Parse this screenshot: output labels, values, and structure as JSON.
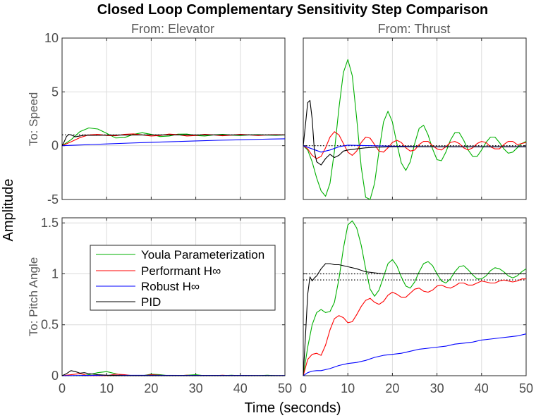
{
  "chart_data": {
    "type": "line",
    "title": "Closed Loop Complementary Sensitivity Step Comparison",
    "xlabel": "Time (seconds)",
    "ylabel": "Amplitude",
    "grid": true,
    "legend_placement": "inside lower-left subplot, upper area",
    "columns": [
      "From: Elevator",
      "From: Thrust"
    ],
    "rows": [
      "To: Speed",
      "To: Pitch Angle"
    ],
    "xlim": [
      0,
      50
    ],
    "xticks": [
      "0",
      "10",
      "20",
      "30",
      "40",
      "50"
    ],
    "row_ylims": [
      [
        -5,
        10
      ],
      [
        0,
        1.55
      ]
    ],
    "row_yticks": [
      [
        "-5",
        "0",
        "5",
        "10"
      ],
      [
        "0",
        "0.5",
        "1",
        "1.5"
      ]
    ],
    "series": [
      {
        "name": "Youla Parameterization",
        "color": "#00b000"
      },
      {
        "name": "Performant H∞",
        "color": "#ff0000"
      },
      {
        "name": "Robust H∞",
        "color": "#0000ff"
      },
      {
        "name": "PID",
        "color": "#000000"
      }
    ],
    "subplots": [
      {
        "row": 0,
        "col": 0,
        "reference_lines": [
          1.0
        ],
        "series": {
          "Youla Parameterization": {
            "x": [
              0,
              2,
              4,
              6,
              8,
              10,
              12,
              14,
              16,
              18,
              20,
              22,
              24,
              26,
              28,
              30,
              32,
              34,
              36,
              38,
              40,
              42,
              44,
              46,
              48,
              50
            ],
            "y": [
              0,
              0.55,
              1.3,
              1.65,
              1.55,
              1.15,
              0.72,
              0.75,
              1.05,
              1.2,
              1.05,
              0.85,
              0.9,
              1.07,
              1.08,
              0.95,
              0.9,
              1.0,
              1.05,
              0.98,
              0.95,
              1.0,
              1.02,
              0.98,
              0.97,
              1.0
            ]
          },
          "Performant H∞": {
            "x": [
              0,
              2,
              4,
              6,
              8,
              10,
              12,
              14,
              16,
              18,
              20,
              22,
              24,
              26,
              28,
              30,
              32,
              34,
              36,
              38,
              40,
              42,
              44,
              46,
              48,
              50
            ],
            "y": [
              0,
              0.35,
              0.75,
              1.0,
              1.05,
              0.95,
              0.92,
              1.05,
              1.1,
              1.0,
              0.9,
              0.95,
              1.08,
              1.02,
              0.9,
              0.95,
              1.05,
              1.0,
              0.92,
              0.98,
              1.05,
              1.0,
              0.95,
              1.0,
              1.02,
              1.0
            ]
          },
          "Robust H∞": {
            "x": [
              0,
              5,
              10,
              15,
              20,
              25,
              30,
              35,
              40,
              45,
              50
            ],
            "y": [
              0,
              0.08,
              0.16,
              0.24,
              0.31,
              0.38,
              0.44,
              0.5,
              0.55,
              0.6,
              0.64
            ]
          },
          "PID": {
            "x": [
              0,
              0.5,
              1,
              1.5,
              2,
              3,
              4,
              5,
              6,
              8,
              10,
              14,
              20,
              30,
              40,
              50
            ],
            "y": [
              0,
              0.4,
              0.85,
              1.05,
              1.0,
              0.82,
              0.9,
              0.98,
              0.97,
              0.96,
              0.98,
              0.99,
              1.0,
              1.0,
              1.0,
              1.0
            ]
          }
        }
      },
      {
        "row": 0,
        "col": 1,
        "reference_lines": [
          0.0
        ],
        "series": {
          "Youla Parameterization": {
            "x": [
              0,
              1,
              2,
              3,
              4,
              5,
              6,
              7,
              8,
              9,
              10,
              11,
              12,
              13,
              14,
              15,
              16,
              17,
              18,
              19,
              20,
              21,
              22,
              23,
              24,
              25,
              26,
              27,
              28,
              29,
              30,
              31,
              32,
              33,
              34,
              35,
              36,
              37,
              38,
              39,
              40,
              41,
              42,
              43,
              44,
              45,
              46,
              47,
              48,
              49,
              50
            ],
            "y": [
              0,
              -0.4,
              -1.5,
              -3.0,
              -4.2,
              -4.7,
              -3.5,
              -0.5,
              3.5,
              6.8,
              8.0,
              6.5,
              2.5,
              -2.0,
              -4.8,
              -5.3,
              -3.5,
              -0.5,
              2.2,
              3.2,
              2.2,
              0.2,
              -1.6,
              -2.3,
              -1.5,
              0.2,
              1.6,
              1.9,
              1.0,
              -0.3,
              -1.3,
              -1.4,
              -0.6,
              0.5,
              1.2,
              1.2,
              0.5,
              -0.4,
              -1.0,
              -1.0,
              -0.4,
              0.3,
              0.8,
              0.8,
              0.3,
              -0.3,
              -0.7,
              -0.6,
              -0.2,
              0.2,
              0.4
            ]
          },
          "Performant H∞": {
            "x": [
              0,
              1,
              2,
              3,
              4,
              5,
              6,
              7,
              8,
              9,
              10,
              11,
              12,
              13,
              14,
              15,
              16,
              17,
              18,
              19,
              20,
              21,
              22,
              23,
              24,
              25,
              26,
              27,
              28,
              29,
              30,
              31,
              32,
              33,
              34,
              35,
              36,
              37,
              38,
              39,
              40,
              41,
              42,
              43,
              44,
              45,
              46,
              47,
              48,
              49,
              50
            ],
            "y": [
              0,
              -0.3,
              -0.9,
              -1.2,
              -1.0,
              -0.2,
              0.8,
              1.3,
              1.0,
              0.2,
              -0.6,
              -0.9,
              -0.5,
              0.3,
              0.8,
              0.7,
              0.1,
              -0.5,
              -0.6,
              -0.2,
              0.3,
              0.5,
              0.3,
              -0.2,
              -0.5,
              -0.4,
              0.1,
              0.4,
              0.4,
              0.0,
              -0.3,
              -0.4,
              -0.1,
              0.3,
              0.4,
              0.2,
              -0.2,
              -0.4,
              -0.2,
              0.2,
              0.4,
              0.3,
              -0.1,
              -0.3,
              -0.3,
              0.1,
              0.4,
              0.4,
              0.1,
              0.2,
              0.3
            ]
          },
          "Robust H∞": {
            "x": [
              0,
              2,
              4,
              6,
              8,
              10,
              15,
              20,
              30,
              40,
              50
            ],
            "y": [
              0,
              -0.3,
              -0.6,
              -0.4,
              -0.1,
              0.05,
              0.0,
              -0.05,
              -0.1,
              -0.1,
              -0.1
            ]
          },
          "PID": {
            "x": [
              0,
              0.5,
              1,
              1.5,
              2,
              2.5,
              3,
              4,
              5,
              6,
              7,
              8,
              9,
              10,
              12,
              14,
              16,
              20,
              30,
              40,
              50
            ],
            "y": [
              0,
              2.0,
              4.0,
              4.2,
              2.5,
              -0.5,
              -1.5,
              -1.8,
              -1.2,
              -0.8,
              -1.1,
              -0.9,
              -0.5,
              -0.4,
              -0.3,
              -0.2,
              -0.15,
              -0.1,
              -0.1,
              -0.1,
              -0.1
            ]
          }
        }
      },
      {
        "row": 1,
        "col": 0,
        "reference_lines": [
          0.0
        ],
        "series": {
          "Youla Parameterization": {
            "x": [
              0,
              2,
              4,
              6,
              8,
              10,
              12,
              14,
              16,
              18,
              20,
              22,
              24,
              26,
              28,
              30,
              32,
              34,
              36,
              38,
              40,
              42,
              44,
              46,
              48,
              50
            ],
            "y": [
              0,
              -0.01,
              0.0,
              0.01,
              0.03,
              0.04,
              0.02,
              -0.01,
              -0.02,
              0.0,
              0.015,
              0.01,
              -0.01,
              -0.01,
              0.005,
              0.01,
              0.0,
              -0.01,
              0.0,
              0.005,
              0.0,
              -0.005,
              0.0,
              0.005,
              0.0,
              0.0
            ]
          },
          "Performant H∞": {
            "x": [
              0,
              2,
              4,
              6,
              8,
              10,
              12,
              14,
              16,
              18,
              20,
              22,
              24,
              26,
              28,
              30,
              32,
              34,
              36,
              38,
              40,
              42,
              44,
              46,
              48,
              50
            ],
            "y": [
              0,
              0.01,
              0.02,
              0.0,
              -0.01,
              0.0,
              0.015,
              0.01,
              -0.01,
              -0.005,
              0.01,
              0.005,
              -0.005,
              0.0,
              0.005,
              0.0,
              -0.005,
              0.0,
              0.005,
              0.0,
              0.0,
              0.0,
              0.0,
              0.0,
              0.0,
              0.0
            ]
          },
          "Robust H∞": {
            "x": [
              0,
              5,
              10,
              20,
              30,
              40,
              50
            ],
            "y": [
              0,
              0.003,
              0.004,
              0.004,
              0.003,
              0.003,
              0.002
            ]
          },
          "PID": {
            "x": [
              0,
              1,
              2,
              3,
              4,
              5,
              6,
              8,
              10,
              14,
              20,
              30,
              40,
              50
            ],
            "y": [
              0,
              0.02,
              0.05,
              0.04,
              0.025,
              0.03,
              0.02,
              0.01,
              0.005,
              0.0,
              0.0,
              0.0,
              0.0,
              0.0
            ]
          }
        }
      },
      {
        "row": 1,
        "col": 1,
        "reference_lines": [
          1.0,
          0.94
        ],
        "series": {
          "Youla Parameterization": {
            "x": [
              0,
              1,
              2,
              3,
              4,
              5,
              6,
              7,
              8,
              9,
              10,
              11,
              12,
              13,
              14,
              15,
              16,
              17,
              18,
              19,
              20,
              21,
              22,
              23,
              24,
              25,
              26,
              27,
              28,
              29,
              30,
              31,
              32,
              33,
              34,
              35,
              36,
              37,
              38,
              39,
              40,
              41,
              42,
              43,
              44,
              45,
              46,
              47,
              48,
              49,
              50
            ],
            "y": [
              0,
              0.28,
              0.5,
              0.62,
              0.65,
              0.62,
              0.63,
              0.72,
              0.95,
              1.25,
              1.48,
              1.52,
              1.45,
              1.28,
              1.05,
              0.85,
              0.78,
              0.84,
              0.97,
              1.1,
              1.14,
              1.08,
              0.97,
              0.88,
              0.86,
              0.92,
              1.02,
              1.1,
              1.12,
              1.08,
              1.0,
              0.93,
              0.91,
              0.95,
              1.02,
              1.07,
              1.08,
              1.04,
              0.99,
              0.95,
              0.95,
              0.98,
              1.03,
              1.06,
              1.05,
              1.02,
              0.98,
              0.96,
              0.98,
              1.02,
              1.05
            ]
          },
          "Performant H∞": {
            "x": [
              0,
              1,
              2,
              3,
              4,
              5,
              6,
              7,
              8,
              9,
              10,
              11,
              12,
              13,
              14,
              15,
              16,
              17,
              18,
              19,
              20,
              21,
              22,
              23,
              24,
              25,
              26,
              27,
              28,
              29,
              30,
              31,
              32,
              33,
              34,
              35,
              36,
              37,
              38,
              39,
              40,
              41,
              42,
              43,
              44,
              45,
              46,
              47,
              48,
              49,
              50
            ],
            "y": [
              0,
              0.16,
              0.21,
              0.22,
              0.2,
              0.3,
              0.45,
              0.56,
              0.59,
              0.57,
              0.52,
              0.53,
              0.6,
              0.68,
              0.74,
              0.76,
              0.72,
              0.7,
              0.73,
              0.79,
              0.82,
              0.8,
              0.77,
              0.77,
              0.81,
              0.85,
              0.86,
              0.83,
              0.82,
              0.84,
              0.88,
              0.89,
              0.87,
              0.86,
              0.88,
              0.91,
              0.91,
              0.89,
              0.89,
              0.91,
              0.93,
              0.92,
              0.91,
              0.91,
              0.93,
              0.94,
              0.93,
              0.92,
              0.93,
              0.95,
              0.95
            ]
          },
          "Robust H∞": {
            "x": [
              0,
              1,
              2,
              3,
              4,
              6,
              8,
              10,
              12,
              14,
              16,
              18,
              20,
              22,
              24,
              26,
              28,
              30,
              32,
              34,
              36,
              38,
              40,
              42,
              44,
              46,
              48,
              50
            ],
            "y": [
              0,
              0.03,
              0.045,
              0.05,
              0.05,
              0.07,
              0.1,
              0.12,
              0.13,
              0.15,
              0.18,
              0.2,
              0.21,
              0.22,
              0.24,
              0.26,
              0.27,
              0.28,
              0.29,
              0.31,
              0.32,
              0.33,
              0.35,
              0.36,
              0.37,
              0.38,
              0.39,
              0.41
            ]
          },
          "PID": {
            "x": [
              0,
              0.5,
              1,
              1.5,
              2,
              2.5,
              3,
              4,
              5,
              6,
              7,
              8,
              10,
              12,
              14,
              16,
              18,
              20,
              25,
              30,
              40,
              50
            ],
            "y": [
              0,
              0.4,
              0.8,
              0.97,
              0.93,
              0.96,
              0.98,
              1.05,
              1.1,
              1.1,
              1.09,
              1.09,
              1.07,
              1.05,
              1.02,
              1.01,
              1.0,
              1.0,
              1.0,
              1.0,
              1.0,
              1.0
            ]
          }
        }
      }
    ]
  }
}
